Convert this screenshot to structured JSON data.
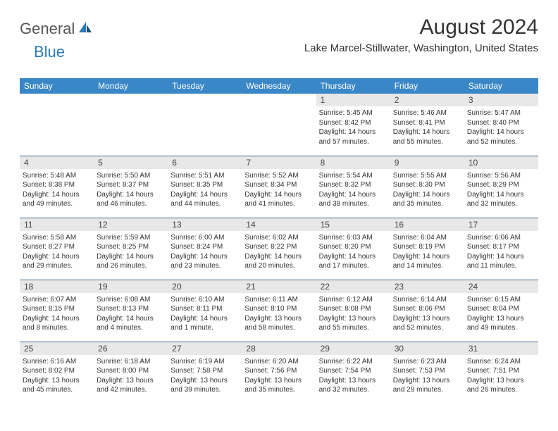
{
  "logo": {
    "general": "General",
    "blue": "Blue"
  },
  "title": "August 2024",
  "location": "Lake Marcel-Stillwater, Washington, United States",
  "colors": {
    "header_bg": "#3a87c8",
    "header_text": "#ffffff",
    "daynum_bg": "#e8e8e8",
    "border": "#3a6a9a",
    "logo_blue": "#2a7ab8"
  },
  "day_headers": [
    "Sunday",
    "Monday",
    "Tuesday",
    "Wednesday",
    "Thursday",
    "Friday",
    "Saturday"
  ],
  "weeks": [
    [
      {
        "n": "",
        "empty": true
      },
      {
        "n": "",
        "empty": true
      },
      {
        "n": "",
        "empty": true
      },
      {
        "n": "",
        "empty": true
      },
      {
        "n": "1",
        "sr": "5:45 AM",
        "ss": "8:42 PM",
        "dl": "14 hours and 57 minutes."
      },
      {
        "n": "2",
        "sr": "5:46 AM",
        "ss": "8:41 PM",
        "dl": "14 hours and 55 minutes."
      },
      {
        "n": "3",
        "sr": "5:47 AM",
        "ss": "8:40 PM",
        "dl": "14 hours and 52 minutes."
      }
    ],
    [
      {
        "n": "4",
        "sr": "5:48 AM",
        "ss": "8:38 PM",
        "dl": "14 hours and 49 minutes."
      },
      {
        "n": "5",
        "sr": "5:50 AM",
        "ss": "8:37 PM",
        "dl": "14 hours and 46 minutes."
      },
      {
        "n": "6",
        "sr": "5:51 AM",
        "ss": "8:35 PM",
        "dl": "14 hours and 44 minutes."
      },
      {
        "n": "7",
        "sr": "5:52 AM",
        "ss": "8:34 PM",
        "dl": "14 hours and 41 minutes."
      },
      {
        "n": "8",
        "sr": "5:54 AM",
        "ss": "8:32 PM",
        "dl": "14 hours and 38 minutes."
      },
      {
        "n": "9",
        "sr": "5:55 AM",
        "ss": "8:30 PM",
        "dl": "14 hours and 35 minutes."
      },
      {
        "n": "10",
        "sr": "5:56 AM",
        "ss": "8:29 PM",
        "dl": "14 hours and 32 minutes."
      }
    ],
    [
      {
        "n": "11",
        "sr": "5:58 AM",
        "ss": "8:27 PM",
        "dl": "14 hours and 29 minutes."
      },
      {
        "n": "12",
        "sr": "5:59 AM",
        "ss": "8:25 PM",
        "dl": "14 hours and 26 minutes."
      },
      {
        "n": "13",
        "sr": "6:00 AM",
        "ss": "8:24 PM",
        "dl": "14 hours and 23 minutes."
      },
      {
        "n": "14",
        "sr": "6:02 AM",
        "ss": "8:22 PM",
        "dl": "14 hours and 20 minutes."
      },
      {
        "n": "15",
        "sr": "6:03 AM",
        "ss": "8:20 PM",
        "dl": "14 hours and 17 minutes."
      },
      {
        "n": "16",
        "sr": "6:04 AM",
        "ss": "8:19 PM",
        "dl": "14 hours and 14 minutes."
      },
      {
        "n": "17",
        "sr": "6:06 AM",
        "ss": "8:17 PM",
        "dl": "14 hours and 11 minutes."
      }
    ],
    [
      {
        "n": "18",
        "sr": "6:07 AM",
        "ss": "8:15 PM",
        "dl": "14 hours and 8 minutes."
      },
      {
        "n": "19",
        "sr": "6:08 AM",
        "ss": "8:13 PM",
        "dl": "14 hours and 4 minutes."
      },
      {
        "n": "20",
        "sr": "6:10 AM",
        "ss": "8:11 PM",
        "dl": "14 hours and 1 minute."
      },
      {
        "n": "21",
        "sr": "6:11 AM",
        "ss": "8:10 PM",
        "dl": "13 hours and 58 minutes."
      },
      {
        "n": "22",
        "sr": "6:12 AM",
        "ss": "8:08 PM",
        "dl": "13 hours and 55 minutes."
      },
      {
        "n": "23",
        "sr": "6:14 AM",
        "ss": "8:06 PM",
        "dl": "13 hours and 52 minutes."
      },
      {
        "n": "24",
        "sr": "6:15 AM",
        "ss": "8:04 PM",
        "dl": "13 hours and 49 minutes."
      }
    ],
    [
      {
        "n": "25",
        "sr": "6:16 AM",
        "ss": "8:02 PM",
        "dl": "13 hours and 45 minutes."
      },
      {
        "n": "26",
        "sr": "6:18 AM",
        "ss": "8:00 PM",
        "dl": "13 hours and 42 minutes."
      },
      {
        "n": "27",
        "sr": "6:19 AM",
        "ss": "7:58 PM",
        "dl": "13 hours and 39 minutes."
      },
      {
        "n": "28",
        "sr": "6:20 AM",
        "ss": "7:56 PM",
        "dl": "13 hours and 35 minutes."
      },
      {
        "n": "29",
        "sr": "6:22 AM",
        "ss": "7:54 PM",
        "dl": "13 hours and 32 minutes."
      },
      {
        "n": "30",
        "sr": "6:23 AM",
        "ss": "7:53 PM",
        "dl": "13 hours and 29 minutes."
      },
      {
        "n": "31",
        "sr": "6:24 AM",
        "ss": "7:51 PM",
        "dl": "13 hours and 26 minutes."
      }
    ]
  ]
}
